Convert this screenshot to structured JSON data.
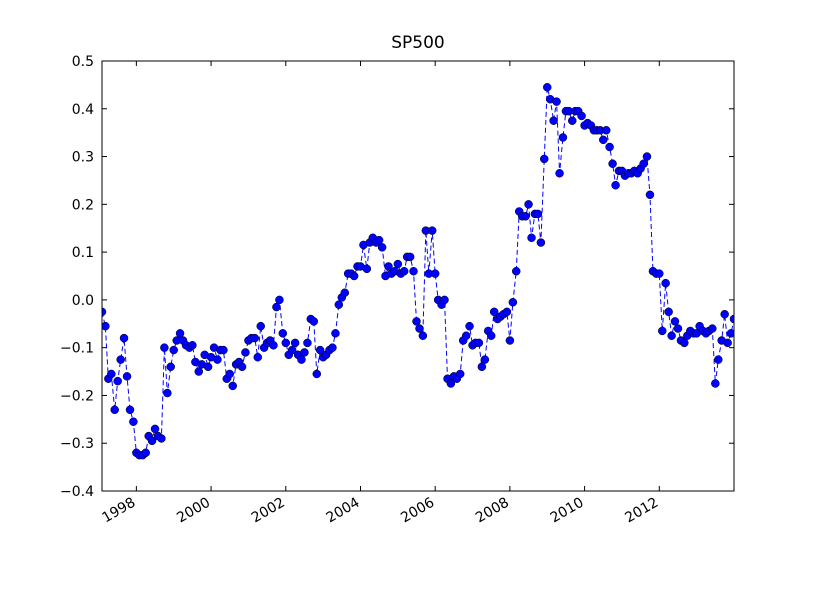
{
  "chart_data": {
    "type": "line",
    "title": "SP500",
    "x": [
      1997.08,
      1997.17,
      1997.25,
      1997.33,
      1997.42,
      1997.5,
      1997.58,
      1997.67,
      1997.75,
      1997.83,
      1997.92,
      1998.0,
      1998.08,
      1998.17,
      1998.25,
      1998.33,
      1998.42,
      1998.5,
      1998.58,
      1998.67,
      1998.75,
      1998.83,
      1998.92,
      1999.0,
      1999.08,
      1999.17,
      1999.25,
      1999.33,
      1999.42,
      1999.5,
      1999.58,
      1999.67,
      1999.75,
      1999.83,
      1999.92,
      2000.0,
      2000.08,
      2000.17,
      2000.25,
      2000.33,
      2000.42,
      2000.5,
      2000.58,
      2000.67,
      2000.75,
      2000.83,
      2000.92,
      2001.0,
      2001.08,
      2001.17,
      2001.25,
      2001.33,
      2001.42,
      2001.5,
      2001.58,
      2001.67,
      2001.75,
      2001.83,
      2001.92,
      2002.0,
      2002.08,
      2002.17,
      2002.25,
      2002.33,
      2002.42,
      2002.5,
      2002.58,
      2002.67,
      2002.75,
      2002.83,
      2002.92,
      2003.0,
      2003.08,
      2003.17,
      2003.25,
      2003.33,
      2003.42,
      2003.5,
      2003.58,
      2003.67,
      2003.75,
      2003.83,
      2003.92,
      2004.0,
      2004.08,
      2004.17,
      2004.25,
      2004.33,
      2004.42,
      2004.5,
      2004.58,
      2004.67,
      2004.75,
      2004.83,
      2004.92,
      2005.0,
      2005.08,
      2005.17,
      2005.25,
      2005.33,
      2005.42,
      2005.5,
      2005.58,
      2005.67,
      2005.75,
      2005.83,
      2005.92,
      2006.0,
      2006.08,
      2006.17,
      2006.25,
      2006.33,
      2006.42,
      2006.5,
      2006.58,
      2006.67,
      2006.75,
      2006.83,
      2006.92,
      2007.0,
      2007.08,
      2007.17,
      2007.25,
      2007.33,
      2007.42,
      2007.5,
      2007.58,
      2007.67,
      2007.75,
      2007.83,
      2007.92,
      2008.0,
      2008.08,
      2008.17,
      2008.25,
      2008.33,
      2008.42,
      2008.5,
      2008.58,
      2008.67,
      2008.75,
      2008.83,
      2008.92,
      2009.0,
      2009.08,
      2009.17,
      2009.25,
      2009.33,
      2009.42,
      2009.5,
      2009.58,
      2009.67,
      2009.75,
      2009.83,
      2009.92,
      2010.0,
      2010.08,
      2010.17,
      2010.25,
      2010.33,
      2010.42,
      2010.5,
      2010.58,
      2010.67,
      2010.75,
      2010.83,
      2010.92,
      2011.0,
      2011.08,
      2011.17,
      2011.25,
      2011.33,
      2011.42,
      2011.5,
      2011.58,
      2011.67,
      2011.75,
      2011.83,
      2011.92,
      2012.0,
      2012.08,
      2012.17,
      2012.25,
      2012.33,
      2012.42,
      2012.5,
      2012.58,
      2012.67,
      2012.75,
      2012.83,
      2012.92,
      2013.0,
      2013.08,
      2013.17,
      2013.25,
      2013.33,
      2013.42,
      2013.5,
      2013.58,
      2013.67,
      2013.75,
      2013.83,
      2013.92,
      2014.0
    ],
    "series": [
      {
        "color": "#0000ff",
        "values": [
          -0.025,
          -0.055,
          -0.165,
          -0.155,
          -0.23,
          -0.17,
          -0.125,
          -0.08,
          -0.16,
          -0.23,
          -0.255,
          -0.32,
          -0.325,
          -0.325,
          -0.32,
          -0.285,
          -0.295,
          -0.27,
          -0.285,
          -0.29,
          -0.1,
          -0.195,
          -0.14,
          -0.105,
          -0.085,
          -0.07,
          -0.085,
          -0.095,
          -0.1,
          -0.095,
          -0.13,
          -0.15,
          -0.135,
          -0.115,
          -0.14,
          -0.12,
          -0.1,
          -0.125,
          -0.105,
          -0.105,
          -0.165,
          -0.155,
          -0.18,
          -0.135,
          -0.13,
          -0.14,
          -0.11,
          -0.085,
          -0.08,
          -0.08,
          -0.12,
          -0.055,
          -0.1,
          -0.09,
          -0.085,
          -0.095,
          -0.015,
          0.0,
          -0.07,
          -0.09,
          -0.115,
          -0.105,
          -0.09,
          -0.115,
          -0.125,
          -0.11,
          -0.09,
          -0.04,
          -0.045,
          -0.155,
          -0.105,
          -0.12,
          -0.115,
          -0.105,
          -0.1,
          -0.07,
          -0.01,
          0.005,
          0.015,
          0.055,
          0.055,
          0.05,
          0.07,
          0.07,
          0.115,
          0.065,
          0.12,
          0.13,
          0.12,
          0.125,
          0.11,
          0.05,
          0.07,
          0.055,
          0.06,
          0.075,
          0.055,
          0.06,
          0.09,
          0.09,
          0.06,
          -0.045,
          -0.06,
          -0.075,
          0.145,
          0.055,
          0.145,
          0.055,
          0.0,
          -0.01,
          0.0,
          -0.165,
          -0.175,
          -0.16,
          -0.165,
          -0.155,
          -0.085,
          -0.075,
          -0.055,
          -0.095,
          -0.09,
          -0.09,
          -0.14,
          -0.125,
          -0.065,
          -0.075,
          -0.025,
          -0.04,
          -0.035,
          -0.03,
          -0.025,
          -0.085,
          -0.005,
          0.06,
          0.185,
          0.175,
          0.175,
          0.2,
          0.13,
          0.18,
          0.18,
          0.12,
          0.295,
          0.445,
          0.42,
          0.375,
          0.415,
          0.265,
          0.34,
          0.395,
          0.395,
          0.375,
          0.395,
          0.395,
          0.385,
          0.365,
          0.37,
          0.365,
          0.355,
          0.355,
          0.355,
          0.335,
          0.355,
          0.32,
          0.285,
          0.24,
          0.27,
          0.27,
          0.26,
          0.265,
          0.265,
          0.27,
          0.265,
          0.275,
          0.285,
          0.3,
          0.22,
          0.06,
          0.055,
          0.055,
          -0.065,
          0.035,
          -0.025,
          -0.075,
          -0.045,
          -0.06,
          -0.085,
          -0.09,
          -0.075,
          -0.065,
          -0.07,
          -0.07,
          -0.055,
          -0.065,
          -0.07,
          -0.065,
          -0.06,
          -0.175,
          -0.125,
          -0.085,
          -0.03,
          -0.09,
          -0.07,
          -0.04
        ]
      }
    ],
    "xlim": [
      1997.08,
      2014.0
    ],
    "xticks": [
      1998,
      2000,
      2002,
      2004,
      2006,
      2008,
      2010,
      2012
    ],
    "ylim": [
      -0.4,
      0.5
    ],
    "yticks": [
      {
        "value": -0.4,
        "label": "−0.4"
      },
      {
        "value": -0.3,
        "label": "−0.3"
      },
      {
        "value": -0.2,
        "label": "−0.2"
      },
      {
        "value": -0.1,
        "label": "−0.1"
      },
      {
        "value": 0.0,
        "label": "0.0"
      },
      0.1,
      0.2,
      0.3,
      0.4,
      0.5
    ],
    "grid": false,
    "line_style": "dashed",
    "marker": "circle"
  }
}
